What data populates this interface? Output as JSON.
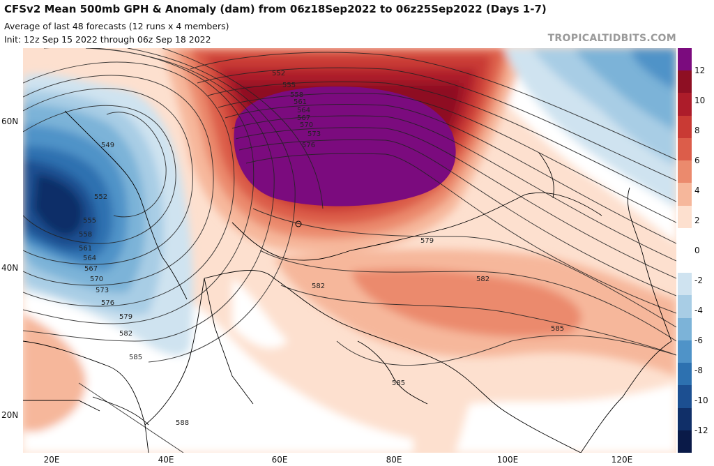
{
  "header": {
    "title": "CFSv2 Mean 500mb GPH & Anomaly (dam) from 06z18Sep2022 to 06z25Sep2022 (Days 1-7)",
    "line2": "Average of last 48 forecasts (12 runs x 4 members)",
    "line3": "Init: 12z Sep 15 2022 through 06z Sep 18 2022",
    "brand": "TROPICALTIDBITS.COM"
  },
  "axes": {
    "lat_labels": [
      "60N",
      "40N",
      "20N"
    ],
    "lon_labels": [
      "20E",
      "40E",
      "60E",
      "80E",
      "100E",
      "120E"
    ]
  },
  "contour_labels": {
    "west_trough": [
      "549",
      "552",
      "555",
      "558",
      "561",
      "564",
      "567",
      "570",
      "573",
      "576",
      "579",
      "582",
      "585"
    ],
    "ridge": [
      "552",
      "555",
      "558",
      "561",
      "564",
      "567",
      "570",
      "573",
      "576"
    ],
    "south": [
      "579",
      "582",
      "582",
      "585",
      "585",
      "588"
    ]
  },
  "colorbar": {
    "ticks": [
      "12",
      "10",
      "8",
      "6",
      "4",
      "2",
      "0",
      "-2",
      "-4",
      "-6",
      "-8",
      "-10",
      "-12"
    ],
    "colors": [
      "#7b0b7e",
      "#8e0f23",
      "#ad1c2a",
      "#c93a34",
      "#dc5d4a",
      "#eb8a6d",
      "#f6b79b",
      "#fde0cf",
      "#ffffff",
      "#ffffff",
      "#cfe3f0",
      "#a8cde5",
      "#7cb3d8",
      "#4f93c8",
      "#2d71b0",
      "#1c4f91",
      "#102f68",
      "#0a1a48"
    ]
  }
}
